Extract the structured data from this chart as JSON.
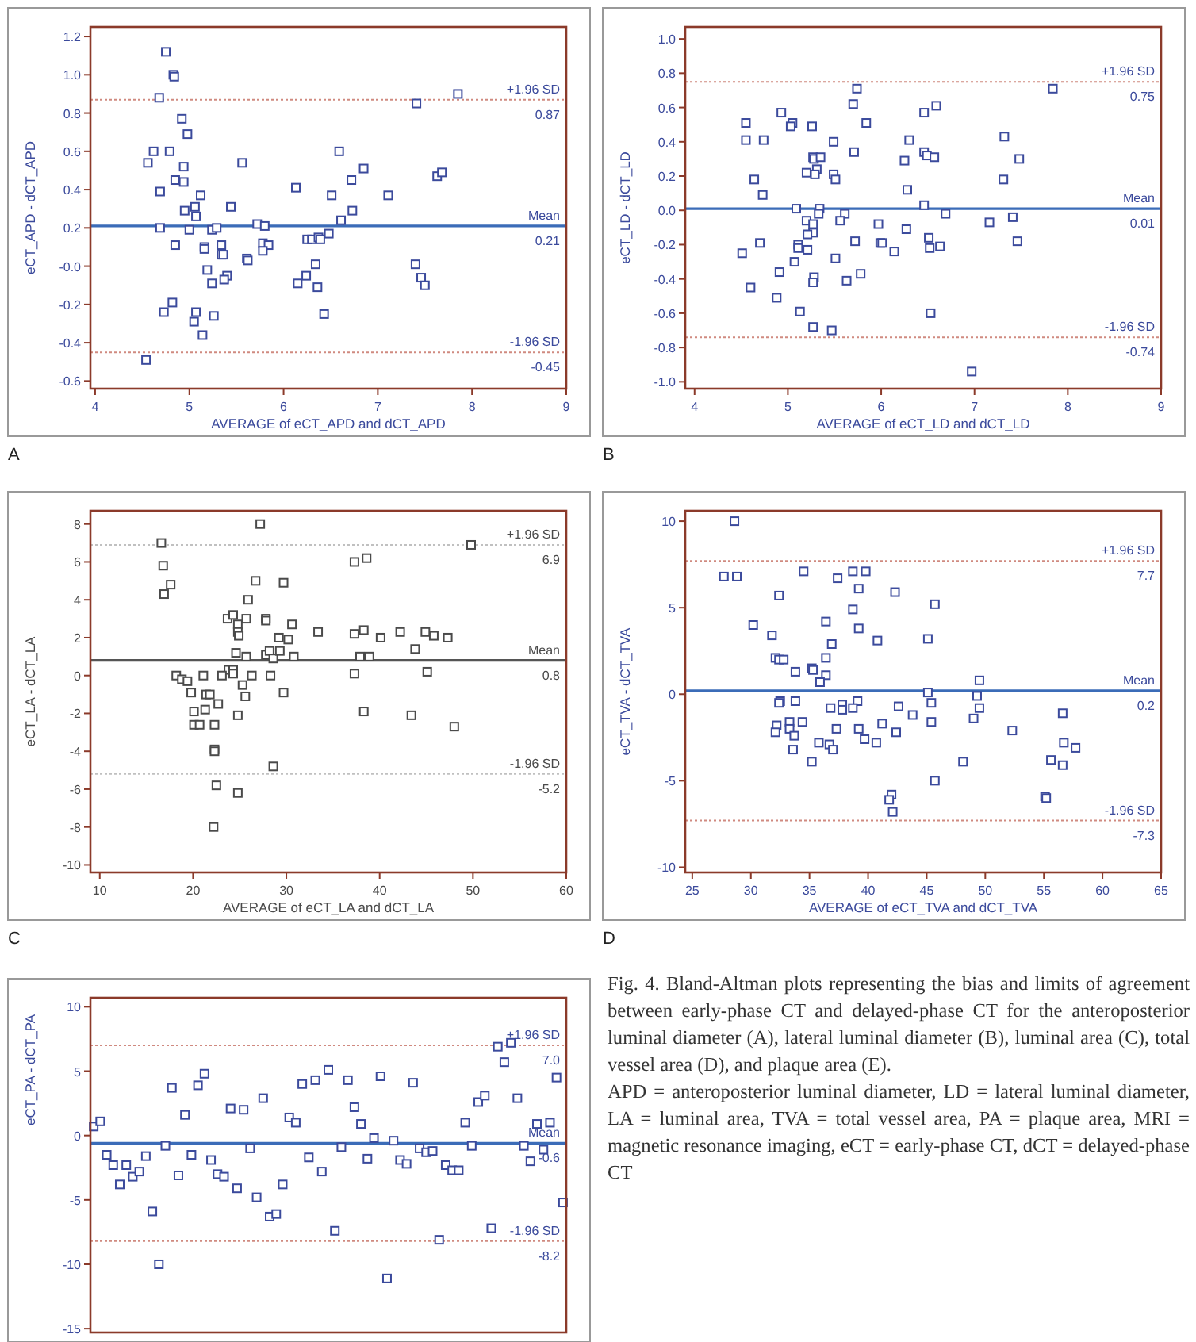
{
  "chart_data": [
    {
      "type": "scatter",
      "title": "A",
      "xlabel": "AVERAGE of  eCT_APD and dCT_APD",
      "ylabel": "eCT_APD - dCT_APD",
      "xlim": [
        3.95,
        9
      ],
      "ylim": [
        -0.64,
        1.25
      ],
      "xticks": [
        4,
        5,
        6,
        7,
        8,
        9
      ],
      "yticks": [
        -0.6,
        -0.4,
        -0.2,
        {
          "value": 0,
          "label": "-0.0"
        },
        0.2,
        0.4,
        0.6,
        0.8,
        {
          "value": 1,
          "label": "1.0"
        },
        1.2
      ],
      "marker": "square",
      "series": [
        {
          "color": "#3b4a9c",
          "x": [
            4.75,
            4.83,
            4.84,
            4.68,
            4.92,
            4.98,
            4.56,
            4.62,
            4.79,
            4.94,
            5.56,
            4.85,
            4.94,
            4.69,
            5.12,
            4.95,
            5.06,
            5.07,
            5.44,
            4.69,
            5.0,
            5.24,
            5.29,
            5.72,
            5.8,
            4.85,
            5.16,
            5.16,
            5.34,
            5.34,
            5.36,
            5.61,
            5.62,
            5.78,
            5.84,
            5.78,
            5.19,
            5.4,
            5.37,
            5.24,
            4.73,
            4.82,
            5.07,
            5.05,
            5.26,
            5.14,
            4.54,
            6.13,
            6.59,
            6.51,
            6.72,
            6.85,
            6.73,
            6.61,
            6.25,
            6.3,
            6.37,
            6.39,
            6.48,
            6.34,
            6.15,
            6.24,
            6.36,
            6.43,
            7.11,
            7.4,
            7.46,
            7.5,
            7.41,
            7.85,
            7.63,
            7.68
          ],
          "values": [
            1.12,
            1.0,
            0.99,
            0.88,
            0.77,
            0.69,
            0.54,
            0.6,
            0.6,
            0.52,
            0.54,
            0.45,
            0.44,
            0.39,
            0.37,
            0.29,
            0.31,
            0.26,
            0.31,
            0.2,
            0.19,
            0.19,
            0.2,
            0.22,
            0.21,
            0.11,
            0.1,
            0.09,
            0.11,
            0.06,
            0.06,
            0.04,
            0.03,
            0.12,
            0.11,
            0.08,
            -0.02,
            -0.05,
            -0.07,
            -0.09,
            -0.24,
            -0.19,
            -0.24,
            -0.29,
            -0.26,
            -0.36,
            -0.49,
            0.41,
            0.6,
            0.37,
            0.45,
            0.51,
            0.29,
            0.24,
            0.14,
            0.14,
            0.15,
            0.14,
            0.17,
            0.01,
            -0.09,
            -0.05,
            -0.11,
            -0.25,
            0.37,
            0.01,
            -0.06,
            -0.1,
            0.85,
            0.9,
            0.47,
            0.49
          ]
        }
      ],
      "ref_lines": [
        {
          "axis": "y",
          "value": 0.87,
          "label": "+1.96 SD",
          "color": "#d08a80",
          "line_style": "dotted"
        },
        {
          "axis": "y",
          "value": 0.21,
          "label": "Mean",
          "color": "#3b6cb8",
          "line_style": "solid"
        },
        {
          "axis": "y",
          "value": -0.45,
          "label": "-1.96 SD",
          "color": "#d08a80",
          "line_style": "dotted"
        }
      ],
      "annotations": [
        {
          "text": "0.87",
          "x": 9,
          "y": 0.87
        },
        {
          "text": "0.21",
          "x": 9,
          "y": 0.21
        },
        {
          "text": "-0.45",
          "x": 9,
          "y": -0.45
        }
      ]
    },
    {
      "type": "scatter",
      "title": "B",
      "xlabel": "AVERAGE of  eCT_LD and dCT_LD",
      "ylabel": "eCT_LD - dCT_LD",
      "xlim": [
        3.9,
        9
      ],
      "ylim": [
        -1.04,
        1.07
      ],
      "xticks": [
        4,
        5,
        6,
        7,
        8,
        9
      ],
      "yticks": [
        {
          "value": -1,
          "label": "-1.0"
        },
        -0.8,
        -0.6,
        -0.4,
        -0.2,
        {
          "value": 0,
          "label": "0.0"
        },
        0.2,
        0.4,
        0.6,
        0.8,
        {
          "value": 1,
          "label": "1.0"
        }
      ],
      "marker": "square",
      "series": [
        {
          "color": "#3b4a9c",
          "x": [
            4.55,
            4.55,
            4.74,
            4.93,
            5.05,
            5.03,
            5.26,
            5.49,
            5.27,
            5.28,
            5.35,
            5.31,
            5.29,
            5.2,
            5.49,
            5.51,
            4.64,
            4.73,
            5.7,
            5.74,
            5.84,
            5.71,
            6.46,
            6.59,
            6.3,
            6.25,
            6.46,
            6.49,
            6.57,
            6.28,
            6.46,
            5.09,
            5.34,
            5.33,
            5.61,
            5.56,
            5.2,
            5.27,
            5.27,
            5.21,
            5.72,
            5.97,
            5.99,
            6.01,
            6.14,
            6.27,
            6.51,
            6.52,
            6.63,
            6.69,
            7.16,
            7.41,
            7.46,
            7.32,
            7.48,
            7.31,
            7.84,
            4.51,
            4.7,
            5.11,
            5.11,
            5.21,
            5.07,
            5.51,
            4.91,
            4.6,
            5.28,
            5.27,
            5.63,
            5.78,
            4.88,
            5.13,
            5.27,
            5.47,
            6.53,
            6.97
          ],
          "values": [
            0.51,
            0.41,
            0.41,
            0.57,
            0.51,
            0.49,
            0.49,
            0.4,
            0.31,
            0.3,
            0.31,
            0.24,
            0.21,
            0.22,
            0.21,
            0.18,
            0.18,
            0.09,
            0.62,
            0.71,
            0.51,
            0.34,
            0.57,
            0.61,
            0.41,
            0.29,
            0.34,
            0.32,
            0.31,
            0.12,
            0.03,
            0.01,
            0.01,
            -0.02,
            -0.02,
            -0.06,
            -0.06,
            -0.08,
            -0.13,
            -0.14,
            -0.18,
            -0.08,
            -0.19,
            -0.19,
            -0.24,
            -0.11,
            -0.16,
            -0.22,
            -0.21,
            -0.02,
            -0.07,
            -0.04,
            -0.18,
            0.43,
            0.3,
            0.18,
            0.71,
            -0.25,
            -0.19,
            -0.2,
            -0.22,
            -0.23,
            -0.3,
            -0.28,
            -0.36,
            -0.45,
            -0.39,
            -0.42,
            -0.41,
            -0.37,
            -0.51,
            -0.59,
            -0.68,
            -0.7,
            -0.6,
            -0.94
          ]
        }
      ],
      "ref_lines": [
        {
          "axis": "y",
          "value": 0.75,
          "label": "+1.96 SD",
          "color": "#d08a80",
          "line_style": "dotted"
        },
        {
          "axis": "y",
          "value": 0.01,
          "label": "Mean",
          "color": "#3b6cb8",
          "line_style": "solid"
        },
        {
          "axis": "y",
          "value": -0.74,
          "label": "-1.96 SD",
          "color": "#d08a80",
          "line_style": "dotted"
        }
      ],
      "annotations": [
        {
          "text": "0.75",
          "x": 9,
          "y": 0.75
        },
        {
          "text": "0.01",
          "x": 9,
          "y": 0.01
        },
        {
          "text": "-0.74",
          "x": 9,
          "y": -0.74
        }
      ]
    },
    {
      "type": "scatter",
      "title": "C",
      "xlabel": "AVERAGE of  eCT_LA and dCT_LA",
      "ylabel": "eCT_LA - dCT_LA",
      "xlim": [
        9,
        60
      ],
      "ylim": [
        -10.4,
        8.7
      ],
      "xticks": [
        10,
        20,
        30,
        40,
        50,
        60
      ],
      "yticks": [
        -10,
        -8,
        -6,
        -4,
        -2,
        0,
        2,
        4,
        6,
        8
      ],
      "marker": "square",
      "series": [
        {
          "color": "#4a4a4a",
          "x": [
            16.6,
            16.8,
            16.9,
            17.6,
            27.2,
            26.7,
            29.7,
            25.9,
            23.7,
            24.3,
            25.7,
            27.8,
            27.8,
            24.8,
            24.8,
            24.9,
            30.6,
            29.2,
            30.2,
            33.4,
            37.3,
            38.6,
            37.3,
            38.3,
            40.1,
            42.2,
            44.9,
            45.8,
            47.3,
            43.8,
            49.8,
            24.6,
            25.7,
            27.8,
            28.2,
            28.6,
            29.3,
            30.8,
            37.9,
            38.9,
            23.8,
            24.3,
            24.3,
            23.1,
            26.3,
            28.3,
            18.2,
            18.8,
            19.4,
            21.1,
            37.3,
            45.1,
            25.3,
            25.6,
            19.8,
            21.4,
            21.8,
            29.7,
            20.1,
            21.3,
            22.7,
            20.1,
            20.7,
            22.3,
            24.8,
            38.3,
            43.4,
            48.0,
            22.3,
            22.3,
            28.6,
            22.5,
            24.8,
            22.2
          ],
          "values": [
            7.0,
            5.8,
            4.3,
            4.8,
            8.0,
            5.0,
            4.9,
            4.0,
            3.0,
            3.2,
            3.0,
            3.0,
            2.9,
            2.7,
            2.3,
            2.1,
            2.7,
            2.0,
            1.9,
            2.3,
            6.0,
            6.2,
            2.2,
            2.4,
            2.0,
            2.3,
            2.3,
            2.1,
            2.0,
            1.4,
            6.9,
            1.2,
            1.0,
            1.1,
            1.3,
            0.9,
            1.3,
            1.0,
            1.0,
            1.0,
            0.3,
            0.3,
            0.1,
            0.0,
            0.0,
            0.0,
            0.0,
            -0.2,
            -0.3,
            0.0,
            0.1,
            0.2,
            -0.5,
            -1.1,
            -0.9,
            -1.0,
            -1.0,
            -0.9,
            -1.9,
            -1.8,
            -1.5,
            -2.6,
            -2.6,
            -2.6,
            -2.1,
            -1.9,
            -2.1,
            -2.7,
            -3.9,
            -4.0,
            -4.8,
            -5.8,
            -6.2,
            -8.0
          ]
        }
      ],
      "ref_lines": [
        {
          "axis": "y",
          "value": 6.9,
          "label": "+1.96 SD",
          "color": "#c0c0c0",
          "line_style": "dotted"
        },
        {
          "axis": "y",
          "value": 0.8,
          "label": "Mean",
          "color": "#555555",
          "line_style": "solid"
        },
        {
          "axis": "y",
          "value": -5.2,
          "label": "-1.96 SD",
          "color": "#c0c0c0",
          "line_style": "dotted"
        }
      ],
      "annotations": [
        {
          "text": "6.9",
          "x": 60,
          "y": 6.9
        },
        {
          "text": "0.8",
          "x": 60,
          "y": 0.8
        },
        {
          "text": "-5.2",
          "x": 60,
          "y": -5.2
        }
      ]
    },
    {
      "type": "scatter",
      "title": "D",
      "xlabel": "AVERAGE of  eCT_TVA and dCT_TVA",
      "ylabel": "eCT_TVA - dCT_TVA",
      "xlim": [
        24.4,
        65
      ],
      "ylim": [
        -10.3,
        10.6
      ],
      "xticks": [
        25,
        30,
        35,
        40,
        45,
        50,
        55,
        60,
        65
      ],
      "yticks": [
        -10,
        -5,
        0,
        5,
        10
      ],
      "marker": "square",
      "series": [
        {
          "color": "#3b4a9c",
          "x": [
            28.6,
            27.7,
            28.8,
            32.4,
            34.5,
            37.4,
            38.7,
            39.8,
            39.2,
            38.7,
            39.2,
            42.3,
            45.7,
            45.1,
            40.8,
            30.2,
            31.8,
            36.4,
            36.9,
            36.4,
            32.1,
            32.4,
            32.8,
            33.8,
            35.2,
            35.3,
            36.4,
            35.9,
            49.5,
            45.1,
            49.3,
            32.5,
            32.4,
            33.8,
            39.1,
            45.4,
            49.5,
            37.8,
            37.8,
            36.8,
            38.7,
            42.6,
            43.8,
            41.2,
            45.4,
            49.0,
            56.6,
            32.2,
            33.3,
            34.4,
            33.3,
            37.3,
            39.2,
            32.1,
            33.7,
            39.7,
            42.4,
            52.3,
            35.8,
            36.7,
            37.0,
            40.7,
            33.6,
            56.7,
            57.7,
            35.2,
            48.1,
            55.6,
            56.6,
            45.7,
            42.0,
            41.8,
            55.1,
            55.2,
            42.1
          ],
          "values": [
            10.0,
            6.8,
            6.8,
            5.7,
            7.1,
            6.7,
            7.1,
            7.1,
            6.1,
            4.9,
            3.8,
            5.9,
            5.2,
            3.2,
            3.1,
            4.0,
            3.4,
            4.2,
            2.9,
            2.1,
            2.1,
            2.0,
            2.0,
            1.3,
            1.5,
            1.4,
            1.1,
            0.7,
            0.8,
            0.1,
            -0.1,
            -0.4,
            -0.5,
            -0.4,
            -0.4,
            -0.5,
            -0.8,
            -0.6,
            -0.9,
            -0.8,
            -0.8,
            -0.7,
            -1.2,
            -1.7,
            -1.6,
            -1.4,
            -1.1,
            -1.8,
            -1.6,
            -1.6,
            -2.0,
            -2.0,
            -2.0,
            -2.2,
            -2.4,
            -2.6,
            -2.2,
            -2.1,
            -2.8,
            -2.9,
            -3.2,
            -2.8,
            -3.2,
            -2.8,
            -3.1,
            -3.9,
            -3.9,
            -3.8,
            -4.1,
            -5.0,
            -5.8,
            -6.1,
            -5.9,
            -6.0,
            -6.8
          ]
        }
      ],
      "ref_lines": [
        {
          "axis": "y",
          "value": 7.7,
          "label": "+1.96 SD",
          "color": "#d08a80",
          "line_style": "dotted"
        },
        {
          "axis": "y",
          "value": 0.2,
          "label": "Mean",
          "color": "#3b6cb8",
          "line_style": "solid"
        },
        {
          "axis": "y",
          "value": -7.3,
          "label": "-1.96 SD",
          "color": "#d08a80",
          "line_style": "dotted"
        }
      ],
      "annotations": [
        {
          "text": "7.7",
          "x": 65,
          "y": 7.7
        },
        {
          "text": "0.2",
          "x": 65,
          "y": 0.2
        },
        {
          "text": "-7.3",
          "x": 65,
          "y": -7.3
        }
      ]
    },
    {
      "type": "scatter",
      "ylabel": "eCT_PA - dCT_PA",
      "categories": [
        null,
        null,
        null,
        null,
        null,
        null,
        null,
        null,
        null,
        null,
        null,
        null,
        null,
        null,
        null,
        null,
        null,
        null,
        null,
        null,
        null,
        null,
        null,
        null,
        null,
        null,
        null,
        null,
        null,
        null,
        null,
        null,
        null,
        null,
        null,
        null,
        null,
        null,
        null,
        null,
        null,
        null,
        null,
        null,
        null,
        null,
        null,
        null,
        null,
        null,
        null,
        null,
        null,
        null,
        null,
        null,
        null,
        null,
        null,
        null,
        null,
        null,
        null,
        null,
        null,
        null,
        null,
        null,
        null,
        null,
        null,
        null,
        null
      ],
      "ylim": [
        -15.3,
        10.7
      ],
      "yticks": [
        -15,
        -10,
        -5,
        0,
        5,
        10
      ],
      "tick_labels": "y",
      "marker": "square",
      "series": [
        {
          "color": "#3b4a9c",
          "values": [
            0.7,
            1.1,
            -1.5,
            -2.3,
            -3.8,
            -2.3,
            -3.2,
            -2.8,
            -1.6,
            -5.9,
            -10.0,
            -0.8,
            3.7,
            -3.1,
            1.6,
            -1.5,
            3.9,
            4.8,
            -1.9,
            -3.0,
            -3.2,
            2.1,
            -4.1,
            2.0,
            -1.0,
            -4.8,
            2.9,
            -6.3,
            -6.1,
            -3.8,
            1.4,
            1.0,
            4.0,
            -1.7,
            4.3,
            -2.8,
            5.1,
            -7.4,
            -0.9,
            4.3,
            2.2,
            0.9,
            -1.8,
            -0.2,
            4.6,
            -11.1,
            -0.4,
            -1.9,
            -2.2,
            4.1,
            -1.0,
            -1.3,
            -1.2,
            -8.1,
            -2.3,
            -2.7,
            -2.7,
            1.0,
            -0.8,
            2.6,
            3.1,
            -7.2,
            6.9,
            5.7,
            7.2,
            2.9,
            -0.8,
            -2.0,
            0.9,
            -1.1,
            1.0,
            4.5,
            -5.2
          ]
        }
      ],
      "ref_lines": [
        {
          "axis": "y",
          "value": 7.0,
          "label": "+1.96 SD",
          "color": "#d08a80",
          "line_style": "dotted"
        },
        {
          "axis": "y",
          "value": -0.6,
          "label": "Mean",
          "color": "#3b6cb8",
          "line_style": "solid"
        },
        {
          "axis": "y",
          "value": -8.2,
          "label": "-1.96 SD",
          "color": "#d08a80",
          "line_style": "dotted"
        }
      ],
      "annotations": [
        {
          "text": "7.0",
          "y": 7.0
        },
        {
          "text": "-0.6",
          "y": -0.6
        },
        {
          "text": "-8.2",
          "y": -8.2
        },
        "Fig. 4. Bland-Altman plots representing the bias and limits of agreement between early-phase CT and delayed-phase CT for the anteroposterior luminal diameter (A), lateral luminal diameter (B), luminal area (C), total vessel area (D), and plaque area (E).",
        "APD = anteroposterior luminal diameter, LD = lateral luminal diameter, LA = luminal area, TVA = total vessel area, PA = plaque area, MRI = magnetic resonance imaging, eCT = early-phase CT, dCT = delayed-phase CT"
      ]
    }
  ]
}
